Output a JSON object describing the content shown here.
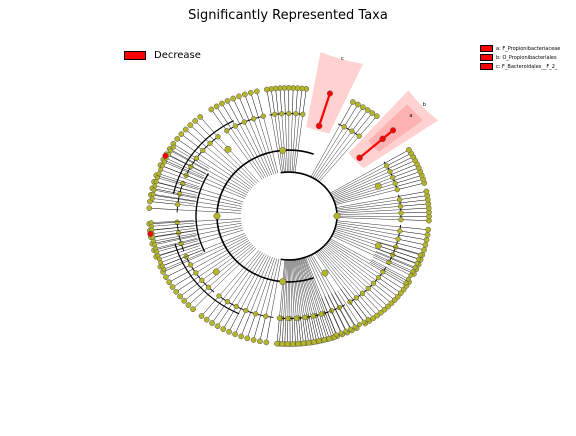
{
  "chart_data": {
    "type": "cladogram",
    "title": "Significantly Represented Taxa",
    "legend": {
      "entries": [
        {
          "label": "Decrease",
          "color": "#ff0000"
        }
      ],
      "placement": "top-left"
    },
    "clade_legend": {
      "placement": "top-right",
      "entries": [
        {
          "letter": "a",
          "label": "a: F_Propionibacteriaceae"
        },
        {
          "letter": "b",
          "label": "b: O_Propionibacteriales"
        },
        {
          "letter": "c",
          "label": "c: F_Bacteroidales__F_2_"
        }
      ]
    },
    "highlighted_clades": [
      {
        "letter": "c",
        "rank": "family",
        "direction": "Decrease"
      },
      {
        "letter": "b",
        "rank": "order",
        "direction": "Decrease"
      },
      {
        "letter": "a",
        "rank": "family",
        "direction": "Decrease"
      }
    ],
    "colors": {
      "significant": "#ff0000",
      "non_significant": "#b5b52a",
      "shade": "#ff9999"
    }
  }
}
